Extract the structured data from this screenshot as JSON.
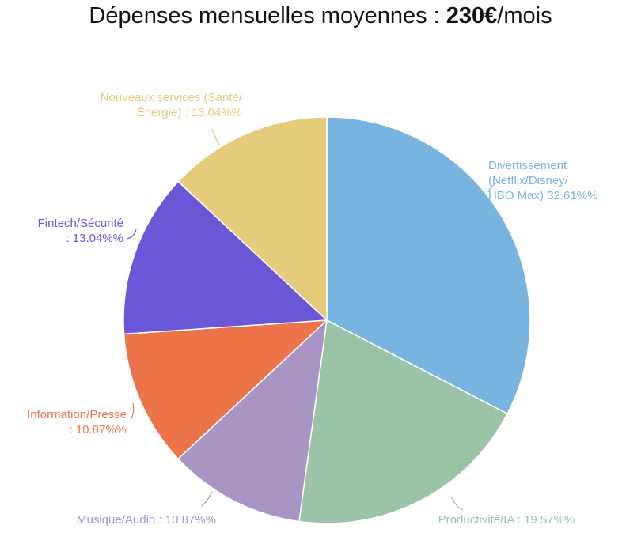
{
  "chart_data": {
    "type": "pie",
    "title": [
      "Dépenses mensuelles moyennes : ",
      "230€",
      "/mois"
    ],
    "labels": [
      "Divertissement\n(Netflix/Disney/\nHBO Max) 32.61%%",
      "Productivité/IA : 19.57%%",
      "Musique/Audio : 10.87%%",
      "Information/Presse\n: 10.87%%",
      "Fintech/Sécurité\n: 13.04%%",
      "Nouveaux services (Santé/\nÉnergie) : 13.04%%"
    ],
    "values": [
      32.61,
      19.57,
      10.87,
      10.87,
      13.04,
      13.04
    ],
    "colors": [
      "#77b4e0",
      "#9bc3a6",
      "#a895c4",
      "#ec7449",
      "#6a57d6",
      "#e6cb7a"
    ]
  }
}
